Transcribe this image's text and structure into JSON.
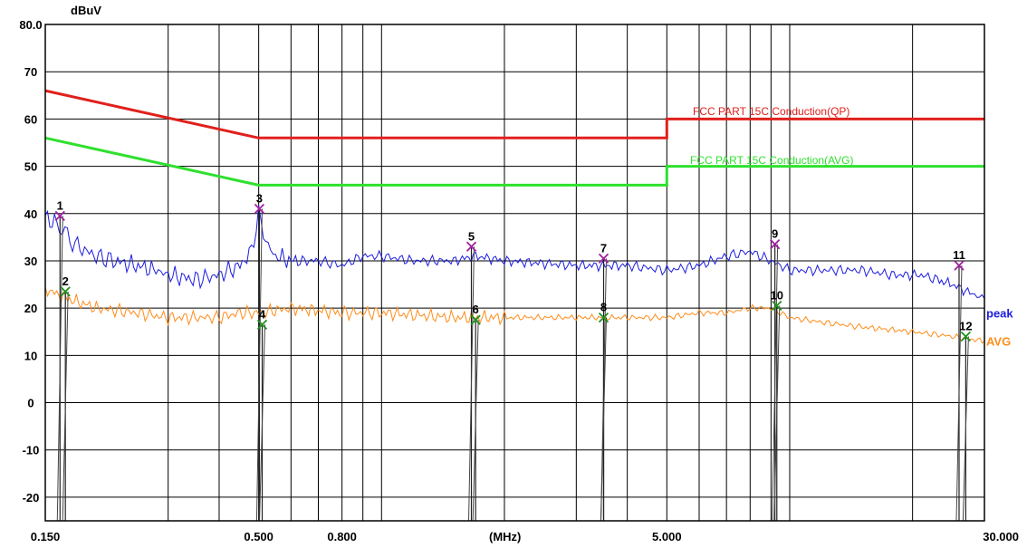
{
  "chart_data": {
    "type": "line",
    "ylabel": "dBuV",
    "xlabel": "(MHz)",
    "x_scale": "log",
    "xlim": [
      0.15,
      30.0
    ],
    "ylim": [
      -25,
      80
    ],
    "grid": true,
    "y_ticks": [
      {
        "value": 80,
        "label": "80.0"
      },
      {
        "value": 70,
        "label": "70"
      },
      {
        "value": 60,
        "label": "60"
      },
      {
        "value": 50,
        "label": "50"
      },
      {
        "value": 40,
        "label": "40"
      },
      {
        "value": 30,
        "label": "30"
      },
      {
        "value": 20,
        "label": "20"
      },
      {
        "value": 10,
        "label": "10"
      },
      {
        "value": 0,
        "label": "0"
      },
      {
        "value": -10,
        "label": "-10"
      },
      {
        "value": -20,
        "label": "-20"
      }
    ],
    "x_ticks": [
      {
        "value": 0.15,
        "label": "0.150"
      },
      {
        "value": 0.5,
        "label": "0.500"
      },
      {
        "value": 0.8,
        "label": "0.800"
      },
      {
        "value": 5.0,
        "label": "5.000"
      },
      {
        "value": 30.0,
        "label": "30.000"
      }
    ],
    "x_gridlines": [
      0.3,
      0.4,
      0.5,
      0.6,
      0.7,
      0.8,
      0.9,
      1.0,
      2.0,
      3.0,
      4.0,
      5.0,
      6.0,
      7.0,
      8.0,
      9.0,
      10.0,
      20.0,
      30.0
    ],
    "limits": [
      {
        "name": "FCC PART 15C  Conduction(QP)",
        "color": "#e0201c",
        "points": [
          [
            0.15,
            66
          ],
          [
            0.5,
            56
          ],
          [
            5.0,
            56
          ],
          [
            5.0,
            60
          ],
          [
            30.0,
            60
          ]
        ]
      },
      {
        "name": "FCC PART 15C Conduction(AVG)",
        "color": "#2ee02e",
        "points": [
          [
            0.15,
            56
          ],
          [
            0.5,
            46
          ],
          [
            5.0,
            46
          ],
          [
            5.0,
            50
          ],
          [
            30.0,
            50
          ]
        ]
      }
    ],
    "series": [
      {
        "name": "peak",
        "color": "#1c1ce0",
        "points": [
          [
            0.15,
            39
          ],
          [
            0.16,
            38
          ],
          [
            0.165,
            37
          ],
          [
            0.17,
            35
          ],
          [
            0.18,
            33
          ],
          [
            0.2,
            31
          ],
          [
            0.22,
            30
          ],
          [
            0.25,
            29
          ],
          [
            0.28,
            28
          ],
          [
            0.3,
            27
          ],
          [
            0.35,
            26
          ],
          [
            0.4,
            27
          ],
          [
            0.45,
            29
          ],
          [
            0.48,
            32
          ],
          [
            0.5,
            40
          ],
          [
            0.52,
            34
          ],
          [
            0.55,
            31
          ],
          [
            0.6,
            30
          ],
          [
            0.7,
            30
          ],
          [
            0.8,
            29
          ],
          [
            0.9,
            31
          ],
          [
            1.0,
            31
          ],
          [
            1.2,
            30
          ],
          [
            1.5,
            30
          ],
          [
            1.7,
            31
          ],
          [
            2.0,
            30
          ],
          [
            3.0,
            29
          ],
          [
            4.0,
            29
          ],
          [
            5.0,
            28
          ],
          [
            6.0,
            29
          ],
          [
            7.0,
            31
          ],
          [
            8.0,
            32
          ],
          [
            9.0,
            30
          ],
          [
            10.0,
            28
          ],
          [
            12.0,
            28
          ],
          [
            15.0,
            28
          ],
          [
            18.0,
            27
          ],
          [
            21.0,
            27
          ],
          [
            23.0,
            26
          ],
          [
            25.0,
            25
          ],
          [
            28.0,
            23
          ],
          [
            30.0,
            22
          ]
        ]
      },
      {
        "name": "AVG",
        "color": "#ff8c1a",
        "points": [
          [
            0.15,
            24
          ],
          [
            0.16,
            23
          ],
          [
            0.17,
            22
          ],
          [
            0.2,
            20
          ],
          [
            0.25,
            19
          ],
          [
            0.3,
            18
          ],
          [
            0.35,
            18
          ],
          [
            0.4,
            18
          ],
          [
            0.45,
            19
          ],
          [
            0.5,
            19
          ],
          [
            0.6,
            20
          ],
          [
            0.8,
            19
          ],
          [
            1.0,
            19
          ],
          [
            1.5,
            18
          ],
          [
            1.7,
            18
          ],
          [
            2.0,
            18
          ],
          [
            3.0,
            18
          ],
          [
            4.0,
            18
          ],
          [
            5.0,
            18
          ],
          [
            6.0,
            19
          ],
          [
            7.0,
            19
          ],
          [
            8.0,
            20
          ],
          [
            9.0,
            20
          ],
          [
            10.0,
            18
          ],
          [
            12.0,
            17
          ],
          [
            15.0,
            16
          ],
          [
            20.0,
            15
          ],
          [
            25.0,
            14
          ],
          [
            30.0,
            13
          ]
        ]
      }
    ],
    "markers": [
      {
        "label": "1",
        "x": 0.163,
        "y": 39.5,
        "type": "peak"
      },
      {
        "label": "2",
        "x": 0.168,
        "y": 23.5,
        "type": "avg"
      },
      {
        "label": "3",
        "x": 0.502,
        "y": 41.0,
        "type": "peak"
      },
      {
        "label": "4",
        "x": 0.51,
        "y": 16.5,
        "type": "avg"
      },
      {
        "label": "5",
        "x": 1.66,
        "y": 33.0,
        "type": "peak"
      },
      {
        "label": "6",
        "x": 1.7,
        "y": 17.5,
        "type": "avg"
      },
      {
        "label": "7",
        "x": 3.5,
        "y": 30.5,
        "type": "peak"
      },
      {
        "label": "8",
        "x": 3.5,
        "y": 18.0,
        "type": "avg"
      },
      {
        "label": "9",
        "x": 9.2,
        "y": 33.5,
        "type": "peak"
      },
      {
        "label": "10",
        "x": 9.3,
        "y": 20.5,
        "type": "avg"
      },
      {
        "label": "11",
        "x": 26.0,
        "y": 29.0,
        "type": "peak"
      },
      {
        "label": "12",
        "x": 27.0,
        "y": 14.0,
        "type": "avg"
      }
    ],
    "colors": {
      "marker_peak": "#a020a0",
      "marker_avg": "#209020",
      "grid": "#000000"
    }
  }
}
